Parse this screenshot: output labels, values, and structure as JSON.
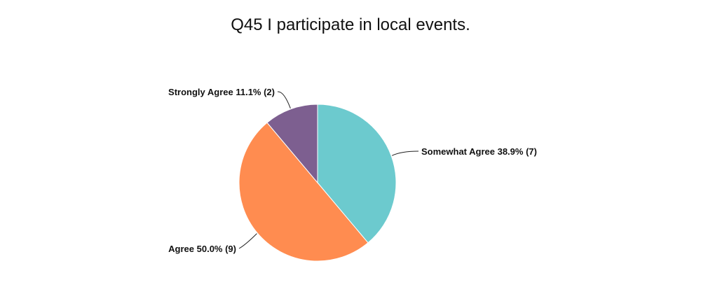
{
  "chart_data": {
    "type": "pie",
    "title": "Q45 I participate in local events.",
    "slices": [
      {
        "label": "Somewhat Agree 38.9% (7)",
        "value": 7,
        "percent": 38.9,
        "color": "#6CCACE"
      },
      {
        "label": "Agree 50.0% (9)",
        "value": 9,
        "percent": 50.0,
        "color": "#FF8C50"
      },
      {
        "label": "Strongly Agree 11.1% (2)",
        "value": 2,
        "percent": 11.1,
        "color": "#7D5F90"
      }
    ],
    "start_angle": "12 o'clock",
    "direction": "clockwise"
  }
}
